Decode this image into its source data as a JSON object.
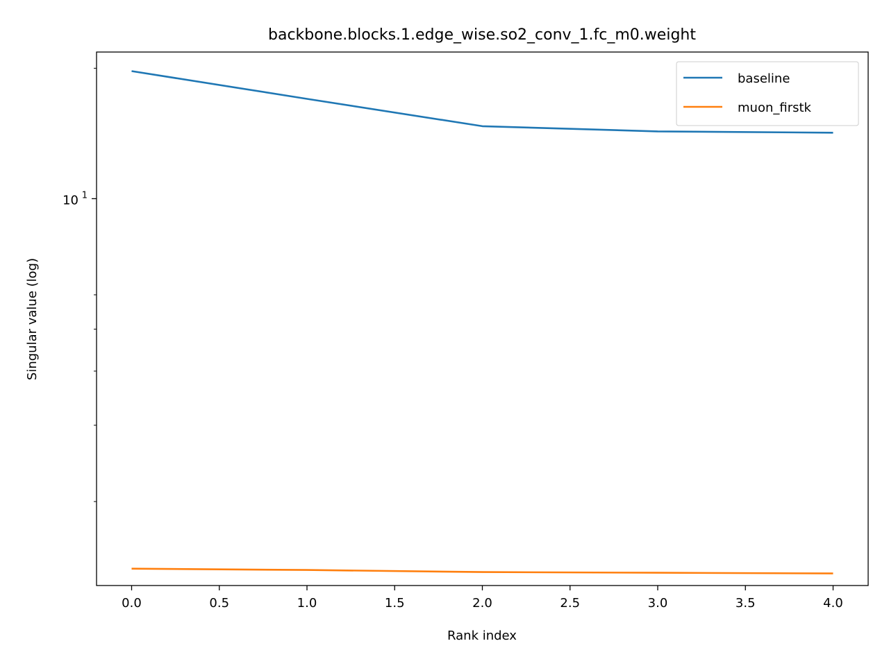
{
  "chart_data": {
    "type": "line",
    "title": "backbone.blocks.1.edge_wise.so2_conv_1.fc_m0.weight",
    "xlabel": "Rank index",
    "ylabel": "Singular value (log)",
    "yscale": "log",
    "xlim": [
      -0.2,
      4.2
    ],
    "ylim": [
      1.28,
      21.8
    ],
    "x": [
      0,
      1,
      2,
      3,
      4
    ],
    "x_ticks": [
      {
        "value": 0.0,
        "label": "0.0"
      },
      {
        "value": 0.5,
        "label": "0.5"
      },
      {
        "value": 1.0,
        "label": "1.0"
      },
      {
        "value": 1.5,
        "label": "1.5"
      },
      {
        "value": 2.0,
        "label": "2.0"
      },
      {
        "value": 2.5,
        "label": "2.5"
      },
      {
        "value": 3.0,
        "label": "3.0"
      },
      {
        "value": 3.5,
        "label": "3.5"
      },
      {
        "value": 4.0,
        "label": "4.0"
      }
    ],
    "y_major_ticks": [
      {
        "value": 10,
        "base": "10",
        "exp": "1"
      }
    ],
    "y_minor_ticks": [
      2,
      3,
      4,
      5,
      6,
      20
    ],
    "series": [
      {
        "name": "baseline",
        "color": "#1f77b4",
        "values": [
          19.7,
          17.0,
          14.7,
          14.3,
          14.2
        ]
      },
      {
        "name": "muon_firstk",
        "color": "#ff7f0e",
        "values": [
          1.4,
          1.39,
          1.375,
          1.37,
          1.365
        ]
      }
    ],
    "legend": {
      "position": "top-right"
    },
    "grid": false
  }
}
